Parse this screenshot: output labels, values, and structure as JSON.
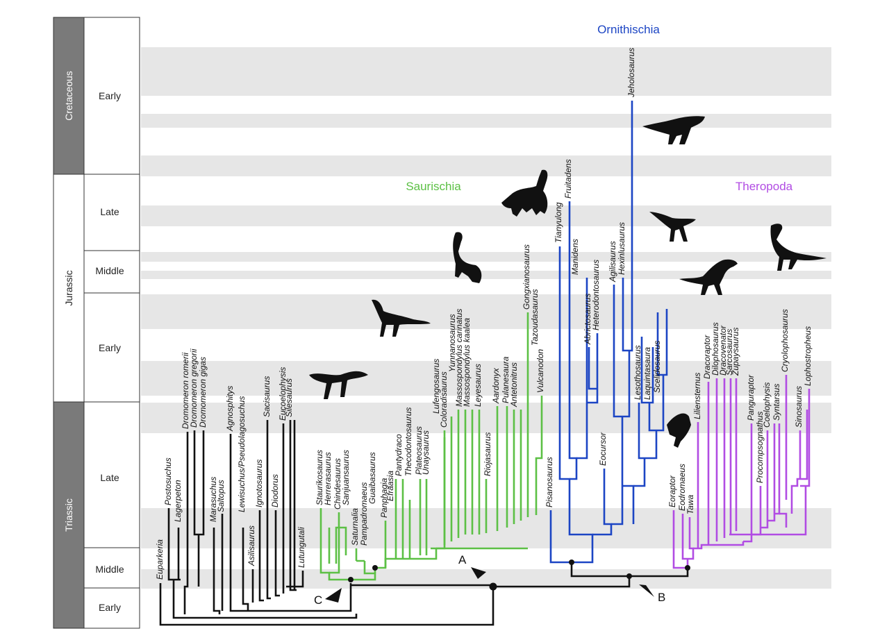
{
  "colors": {
    "basal": "#111111",
    "saurischia": "#5cc045",
    "ornithischia": "#1c45c4",
    "theropoda": "#b14ce3",
    "band": "#e6e6e6",
    "period_dark": "#7a7a7a"
  },
  "timescale": {
    "periods": [
      {
        "label": "Cretaceous",
        "style": "dark"
      },
      {
        "label": "Jurassic",
        "style": "light"
      },
      {
        "label": "Triassic",
        "style": "dark"
      }
    ],
    "epochs": [
      "Early",
      "Late",
      "Middle",
      "Early",
      "Late",
      "Middle",
      "Early"
    ]
  },
  "clades": {
    "ornithischia": "Ornithischia",
    "saurischia": "Saurischia",
    "theropoda": "Theropoda"
  },
  "markers": {
    "a": "A",
    "b": "B",
    "c": "C"
  },
  "taxa": {
    "basal": [
      "Euparkeria",
      "Postosuchus",
      "Lagerpeton",
      "Dromomeron romerii",
      "Dromomeron gregorii",
      "Dromomeron gigas",
      "Marasuchus",
      "Saltopus",
      "Agnosphitys",
      "Lewisuchus/Pseudolagosuchus",
      "Asilisaurus",
      "Ignotosaurus",
      "Sacisaurus",
      "Diodorus",
      "Eucoelophysis",
      "Silesaurus",
      "Lutungutali"
    ],
    "saurischia": [
      "Staurikosaurus",
      "Herrerasaurus",
      "Chindesaurus",
      "Sanjuansaurus",
      "Saturnalia",
      "Pampadromaeus",
      "Guaibasaurus",
      "Panphagia",
      "Efraasia",
      "Pantydraco",
      "Thecodontosaurus",
      "Plateosaurus",
      "Unaysaurus",
      "Coloradisaurus",
      "Lufengosaurus",
      "Yunnanosaurus",
      "Massospondylus carinatus",
      "Massospondylus kaalea",
      "Leyesaurus",
      "Riojasaurus",
      "Aardonyx",
      "Pulanesaura",
      "Antetonitrus",
      "Gongxianosaurus",
      "Tazoudasaurus",
      "Vulcanodon"
    ],
    "ornithischia": [
      "Pisanosaurus",
      "Tianyulong",
      "Fruitadens",
      "Manidens",
      "Abrictosaurus",
      "Heterodontosaurus",
      "Eocursor",
      "Agilisaurus",
      "Hexinlusaurus",
      "Jeholosaurus",
      "Lesothosaurus",
      "Laquintasaura",
      "Scelidosaurus"
    ],
    "theropoda": [
      "Eoraptor",
      "Eodromaeus",
      "Tawa",
      "Liliensternus",
      "Dracoraptor",
      "Dilophosaurus",
      "Dracovenator",
      "Sarcosaurus",
      "Zupaysaurus",
      "Panguraptor",
      "Procompsognathus",
      "Coelophysis",
      "Syntarsus",
      "Cryolophosaurus",
      "Sinosaurus",
      "Lophostropheus"
    ]
  }
}
